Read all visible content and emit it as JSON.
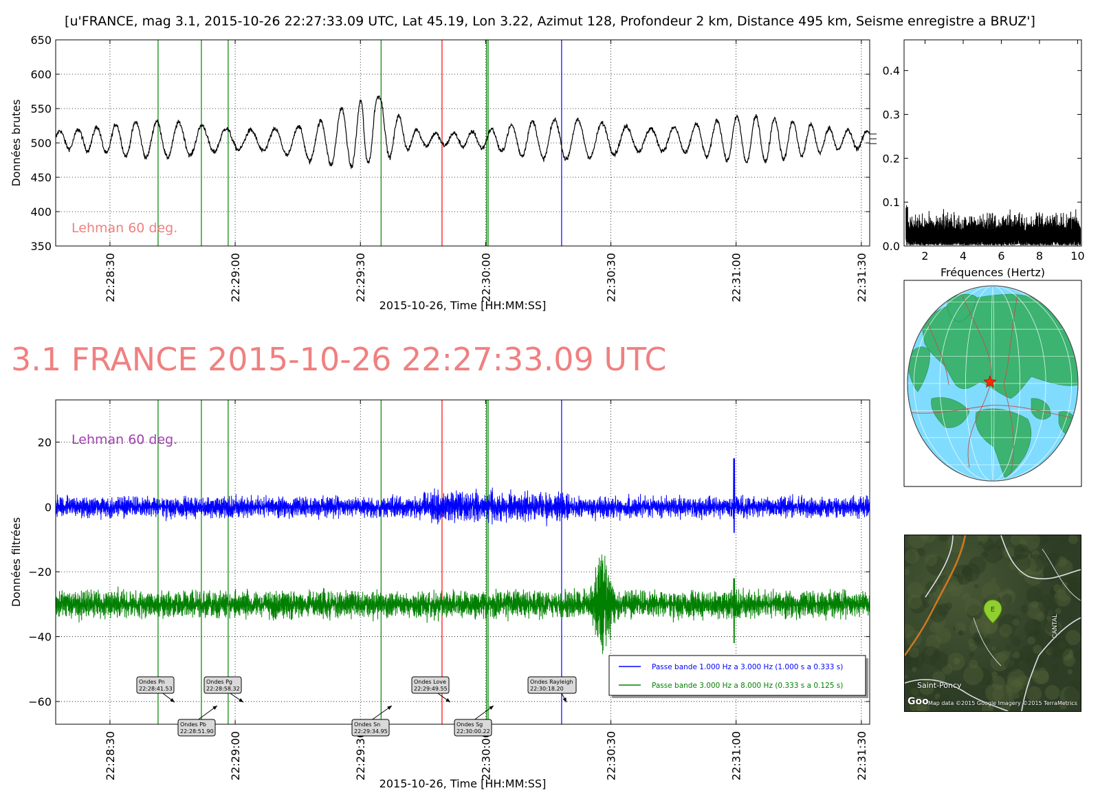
{
  "figure_title": "[u'FRANCE, mag 3.1, 2015-10-26 22:27:33.09 UTC, Lat 45.19, Lon 3.22, Azimut 128, Profondeur 2 km, Distance   495 km, Seisme enregistre a BRUZ']",
  "headline": "3.1 FRANCE 2015-10-26 22:27:33.09 UTC",
  "colors": {
    "headline": "#f08080",
    "raw_trace": "#000000",
    "filter_1": "#0000ff",
    "filter_2": "#008000",
    "line_p_s": "#008000",
    "line_love": "#ff0000",
    "line_rayleigh": "#0000ff",
    "note_top": "#f08080",
    "note_bottom": "#a040b0",
    "ocean": "#7fdcff",
    "land": "#3cb371",
    "border": "#c0504d",
    "marker": "#ff2a00"
  },
  "chart_data": [
    {
      "type": "line",
      "id": "raw",
      "title": "",
      "xlabel": "2015-10-26, Time [HH:MM:SS]",
      "ylabel": "Données brutes",
      "xlim": [
        "22:28:17",
        "22:31:32"
      ],
      "ylim": [
        350,
        650
      ],
      "yticks": [
        350,
        400,
        450,
        500,
        550,
        600,
        650
      ],
      "xticks": [
        "22:28:30",
        "22:29:00",
        "22:29:30",
        "22:30:00",
        "22:30:30",
        "22:31:00",
        "22:31:30"
      ],
      "grid": true,
      "annotation": "Lehman 60 deg.",
      "series": [
        {
          "style": "black noisy oscillation about 505, amplitude about 30",
          "envelope": [
            {
              "t": "22:28:17",
              "center": 505,
              "amp": 25
            },
            {
              "t": "22:29:00",
              "center": 505,
              "amp": 28
            },
            {
              "t": "22:29:20",
              "center": 500,
              "amp": 35
            },
            {
              "t": "22:29:33",
              "center": 520,
              "amp": 55
            },
            {
              "t": "22:29:45",
              "center": 505,
              "amp": 15
            },
            {
              "t": "22:30:10",
              "center": 505,
              "amp": 28
            },
            {
              "t": "22:31:00",
              "center": 505,
              "amp": 35
            },
            {
              "t": "22:31:32",
              "center": 505,
              "amp": 25
            }
          ]
        }
      ],
      "phase_lines": [
        "Pn",
        "Pb",
        "Pg",
        "Sn",
        "Love",
        "Sg1",
        "Sg2",
        "Rayleigh"
      ]
    },
    {
      "type": "line",
      "id": "spectrum",
      "title": "",
      "xlabel": "Fréquences (Hertz)",
      "ylabel": "",
      "xlim": [
        0.9,
        10.2
      ],
      "ylim": [
        0,
        0.47
      ],
      "xticks": [
        2,
        4,
        6,
        8,
        10
      ],
      "yticks": [
        0.0,
        0.1,
        0.2,
        0.3,
        0.4
      ],
      "ytick_labels": [
        "0.0",
        "0.1",
        "0.2",
        "0.3",
        "0.4"
      ],
      "grid": false,
      "series": [
        {
          "style": "black dense noise",
          "baseline": 0.03,
          "spread": 0.05,
          "max": 0.12
        }
      ]
    },
    {
      "type": "line",
      "id": "filtered",
      "title": "",
      "xlabel": "2015-10-26, Time [HH:MM:SS]",
      "ylabel": "Données filtrées",
      "xlim": [
        "22:28:17",
        "22:31:32"
      ],
      "ylim": [
        -67,
        33
      ],
      "yticks": [
        -60,
        -40,
        -20,
        0,
        20
      ],
      "ytick_labels": [
        "−60",
        "−40",
        "−20",
        "0",
        "20"
      ],
      "xticks": [
        "22:28:30",
        "22:29:00",
        "22:29:30",
        "22:30:00",
        "22:30:30",
        "22:31:00",
        "22:31:30"
      ],
      "grid": true,
      "annotation": "Lehman 60 deg.",
      "legend_position": "lower-right",
      "series": [
        {
          "name": "Passe bande 1.000 Hz a 3.000 Hz (1.000 s a 0.333 s)",
          "color": "blue",
          "offset": 0,
          "amp": 3,
          "spike": {
            "t": "22:30:59.5",
            "high": 15,
            "low": -8
          }
        },
        {
          "name": "Passe bande 3.000 Hz a 8.000 Hz (0.333 s a 0.125 s)",
          "color": "green",
          "offset": -30,
          "amp": 4,
          "burst": {
            "t": "22:30:28",
            "high": -13,
            "low": -47
          },
          "spike": {
            "t": "22:30:59.5",
            "high": -22,
            "low": -42
          }
        }
      ]
    }
  ],
  "phases": [
    {
      "id": "Pn",
      "label": "Ondes Pn",
      "time": "22:28:41.53",
      "color": "green"
    },
    {
      "id": "Pb",
      "label": "Ondes Pb",
      "time": "22:28:51.90",
      "color": "green"
    },
    {
      "id": "Pg",
      "label": "Ondes Pg",
      "time": "22:28:58.32",
      "color": "green"
    },
    {
      "id": "Sn",
      "label": "Ondes Sn",
      "time": "22:29:34.95",
      "color": "green"
    },
    {
      "id": "Love",
      "label": "Ondes Love",
      "time": "22:29:49.55",
      "color": "red"
    },
    {
      "id": "Sg1",
      "label": "Ondes Sg",
      "time": "22:30:00.22",
      "color": "green"
    },
    {
      "id": "Rayleigh",
      "label": "Ondes Rayleigh",
      "time": "22:30:18.20",
      "color": "blue"
    }
  ],
  "globe": {
    "marker_icon": "star-icon"
  },
  "satellite_map": {
    "place_label": "Saint-Poncy",
    "region_label": "CANTAL",
    "pin_letter": "E",
    "google_logo": "Goo",
    "attribution": "Map data ©2015 Google  Imagery ©2015 TerraMetrics"
  }
}
